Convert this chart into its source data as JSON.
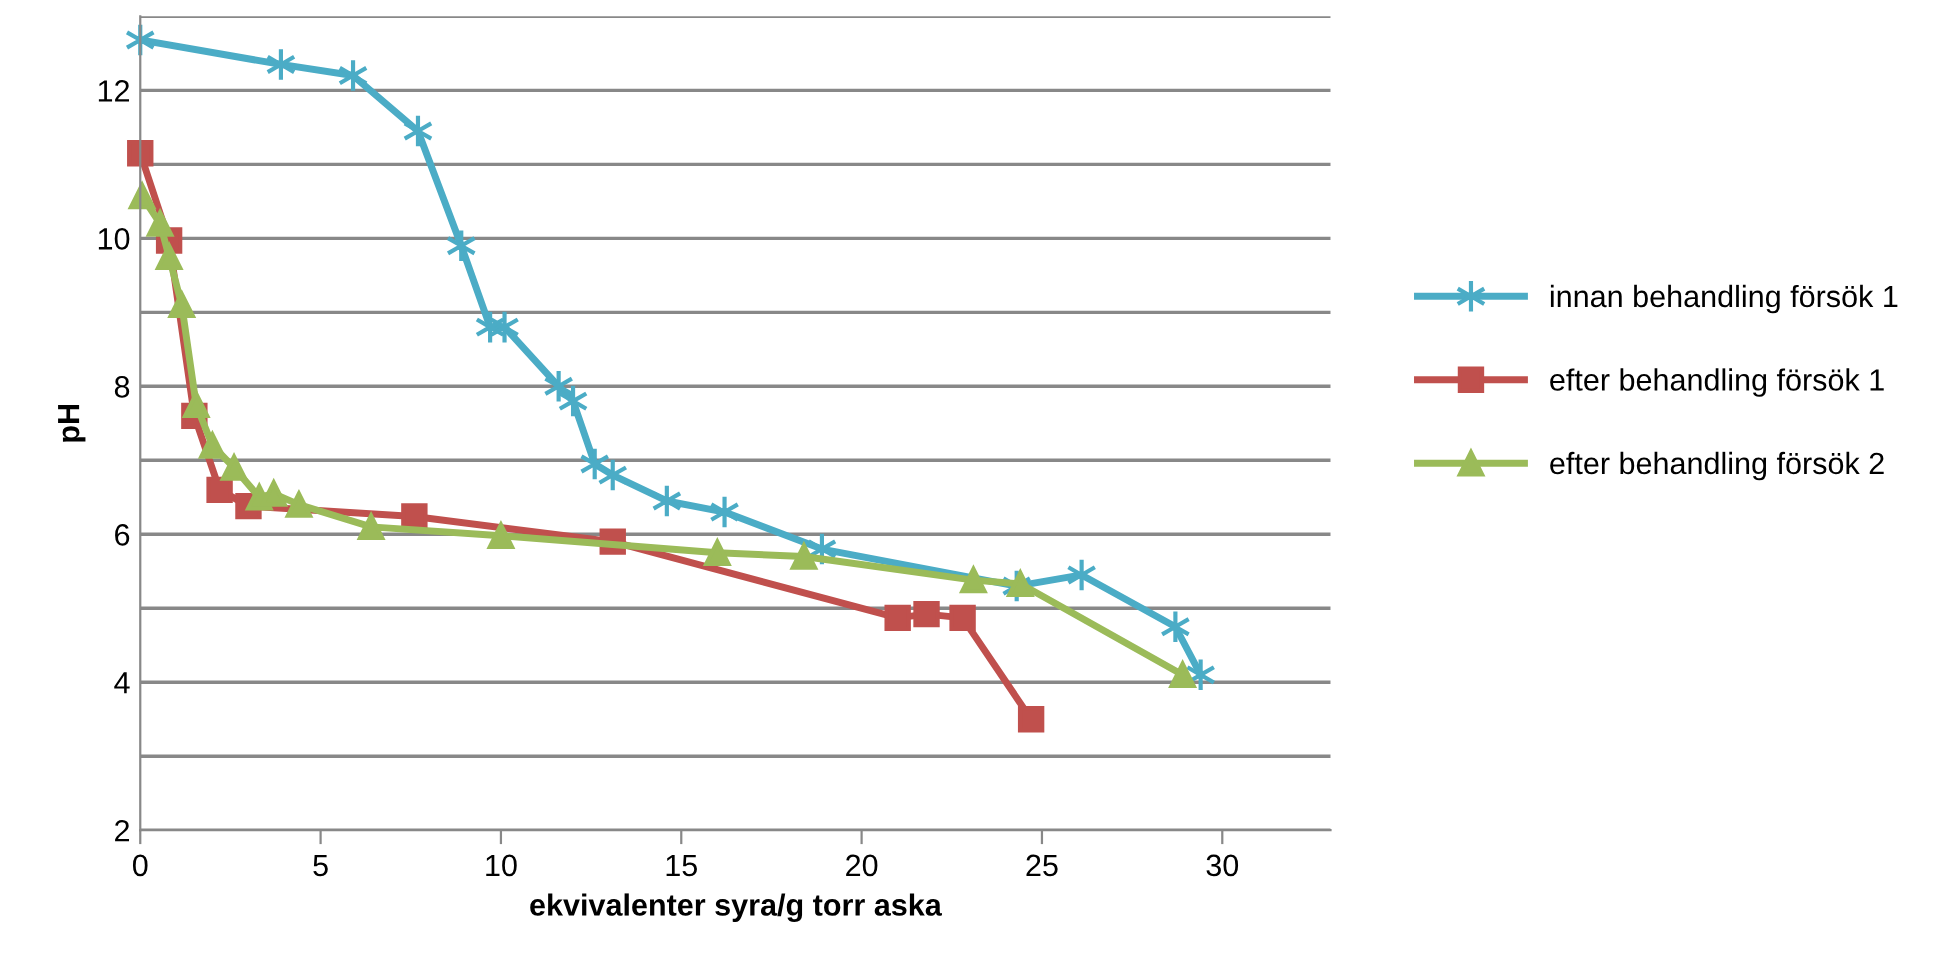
{
  "chart_data": {
    "type": "line",
    "xlabel": "ekvivalenter syra/g torr aska",
    "ylabel": "pH",
    "xlim": [
      0,
      33
    ],
    "xticks": [
      0,
      5,
      10,
      15,
      20,
      25,
      30
    ],
    "ylim": [
      2,
      13
    ],
    "yticks": [
      2,
      {
        "value": 3,
        "label": null
      },
      4,
      {
        "value": 5,
        "label": null
      },
      6,
      {
        "value": 7,
        "label": null
      },
      8,
      {
        "value": 9,
        "label": null
      },
      10,
      {
        "value": 11,
        "label": null
      },
      12,
      {
        "value": 13,
        "label": null
      }
    ],
    "grid": "y",
    "legend": "right",
    "series": [
      {
        "name": "innan behandling försök 1",
        "color": "#4bacc6",
        "marker": "cross",
        "x": [
          0,
          3.9,
          5.9,
          7.7,
          8.9,
          9.7,
          10.1,
          11.6,
          12.0,
          12.6,
          13.1,
          14.6,
          16.2,
          18.9,
          24.3,
          26.1,
          28.7,
          29.4
        ],
        "values": [
          12.68,
          12.35,
          12.2,
          11.45,
          9.9,
          8.8,
          8.8,
          8.0,
          7.8,
          6.95,
          6.8,
          6.45,
          6.3,
          5.8,
          5.3,
          5.45,
          4.75,
          4.1
        ]
      },
      {
        "name": "efter behandling försök 1",
        "color": "#c0504d",
        "marker": "square",
        "x": [
          0,
          0.8,
          1.5,
          2.2,
          3.0,
          7.6,
          13.1,
          21.0,
          21.8,
          22.8,
          24.7
        ],
        "values": [
          11.15,
          9.97,
          7.6,
          6.6,
          6.38,
          6.24,
          5.9,
          4.87,
          4.92,
          4.87,
          3.5
        ]
      },
      {
        "name": "efter behandling försök 2",
        "color": "#9bbb59",
        "marker": "triangle",
        "x": [
          0.05,
          0.55,
          0.8,
          1.15,
          1.55,
          2.0,
          2.6,
          3.3,
          3.7,
          4.4,
          6.4,
          10.0,
          16.0,
          18.4,
          23.1,
          24.4,
          28.9
        ],
        "values": [
          10.57,
          10.2,
          9.75,
          9.1,
          7.75,
          7.2,
          6.9,
          6.5,
          6.55,
          6.4,
          6.1,
          5.98,
          5.75,
          5.7,
          5.38,
          5.33,
          4.1
        ]
      }
    ]
  }
}
